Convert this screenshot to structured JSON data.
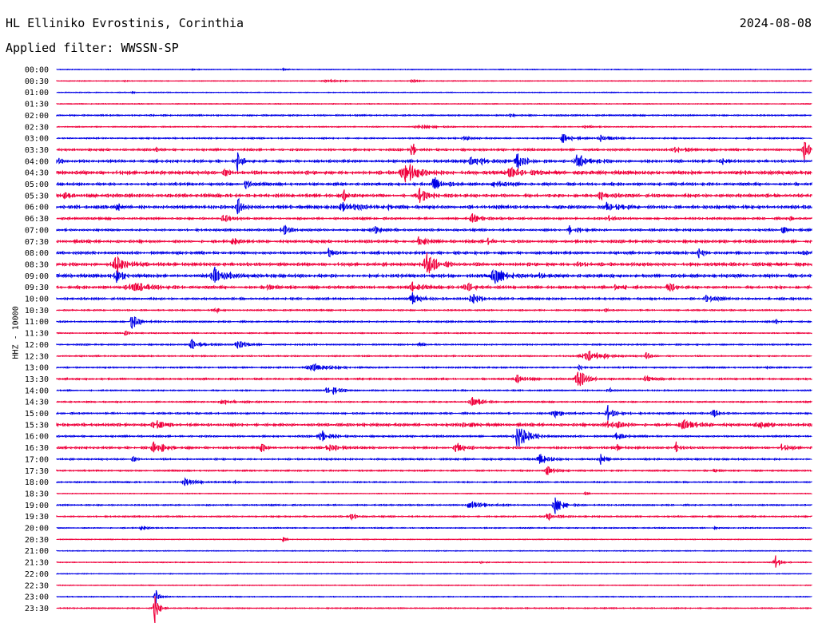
{
  "header": {
    "station": "HL Elliniko Evrostinis, Corinthia",
    "date": "2024-08-08",
    "filter": "Applied filter: WWSSN-SP"
  },
  "chart_data": {
    "type": "line",
    "title": "HL Elliniko Evrostinis, Corinthia",
    "date": "2024-08-08",
    "filter": "WWSSN-SP",
    "ylabel": "HHZ - 10000",
    "tick_labels": [
      "00:00",
      "00:30",
      "01:00",
      "01:30",
      "02:00",
      "02:30",
      "03:00",
      "03:30",
      "04:00",
      "04:30",
      "05:00",
      "05:30",
      "06:00",
      "06:30",
      "07:00",
      "07:30",
      "08:00",
      "08:30",
      "09:00",
      "09:30",
      "10:00",
      "10:30",
      "11:00",
      "11:30",
      "12:00",
      "12:30",
      "13:00",
      "13:30",
      "14:00",
      "14:30",
      "15:00",
      "15:30",
      "16:00",
      "16:30",
      "17:00",
      "17:30",
      "18:00",
      "18:30",
      "19:00",
      "19:30",
      "20:00",
      "20:30",
      "21:00",
      "21:30",
      "22:00",
      "22:30",
      "23:00",
      "23:30"
    ],
    "colors": [
      "#0000e6",
      "#f0003c"
    ],
    "traces": [
      {
        "noise": 0.4,
        "events": [
          [
            0.18,
            1.5,
            0.01
          ],
          [
            0.3,
            1.2,
            0.01
          ]
        ]
      },
      {
        "noise": 0.4,
        "events": [
          [
            0.36,
            2.0,
            0.04
          ],
          [
            0.47,
            1.5,
            0.02
          ],
          [
            0.09,
            1.0,
            0.01
          ]
        ]
      },
      {
        "noise": 0.4,
        "events": [
          [
            0.1,
            1.0,
            0.01
          ]
        ]
      },
      {
        "noise": 0.4,
        "events": []
      },
      {
        "noise": 0.8,
        "events": [
          [
            0.12,
            1.2,
            0.02
          ],
          [
            0.6,
            1.2,
            0.02
          ]
        ]
      },
      {
        "noise": 0.6,
        "events": [
          [
            0.48,
            2.5,
            0.04
          ],
          [
            0.7,
            1.5,
            0.02
          ]
        ]
      },
      {
        "noise": 0.8,
        "events": [
          [
            0.67,
            6,
            0.02
          ],
          [
            0.72,
            5,
            0.02
          ],
          [
            0.54,
            2,
            0.02
          ]
        ]
      },
      {
        "noise": 1.2,
        "events": [
          [
            0.13,
            2,
            0.01
          ],
          [
            0.82,
            6,
            0.02
          ],
          [
            0.99,
            14,
            0.02
          ],
          [
            0.47,
            20,
            0.005
          ]
        ]
      },
      {
        "noise": 1.5,
        "events": [
          [
            0.0,
            6,
            0.01
          ],
          [
            0.24,
            14,
            0.01
          ],
          [
            0.61,
            10,
            0.02
          ],
          [
            0.69,
            9,
            0.03
          ],
          [
            0.55,
            5,
            0.05
          ],
          [
            0.88,
            5,
            0.01
          ]
        ]
      },
      {
        "noise": 2.0,
        "events": [
          [
            0.46,
            16,
            0.03
          ],
          [
            0.22,
            4,
            0.02
          ],
          [
            0.6,
            5,
            0.04
          ]
        ]
      },
      {
        "noise": 1.5,
        "events": [
          [
            0.5,
            10,
            0.02
          ],
          [
            0.25,
            6,
            0.01
          ],
          [
            0.58,
            5,
            0.02
          ]
        ]
      },
      {
        "noise": 1.8,
        "events": [
          [
            0.01,
            5,
            0.01
          ],
          [
            0.38,
            8,
            0.01
          ],
          [
            0.48,
            10,
            0.02
          ],
          [
            0.72,
            4,
            0.02
          ]
        ]
      },
      {
        "noise": 1.8,
        "events": [
          [
            0.08,
            6,
            0.01
          ],
          [
            0.24,
            12,
            0.01
          ],
          [
            0.38,
            8,
            0.03
          ],
          [
            0.73,
            6,
            0.03
          ],
          [
            0.44,
            3,
            0.01
          ]
        ]
      },
      {
        "noise": 1.2,
        "events": [
          [
            0.22,
            5,
            0.02
          ],
          [
            0.55,
            6,
            0.02
          ],
          [
            0.73,
            4,
            0.02
          ],
          [
            0.97,
            4,
            0.01
          ]
        ]
      },
      {
        "noise": 1.2,
        "events": [
          [
            0.3,
            8,
            0.02
          ],
          [
            0.42,
            5,
            0.02
          ],
          [
            0.68,
            6,
            0.02
          ],
          [
            0.96,
            6,
            0.01
          ]
        ]
      },
      {
        "noise": 1.5,
        "events": [
          [
            0.23,
            12,
            0.01
          ],
          [
            0.48,
            6,
            0.02
          ],
          [
            0.57,
            7,
            0.01
          ]
        ]
      },
      {
        "noise": 1.5,
        "events": [
          [
            0.36,
            6,
            0.01
          ],
          [
            0.85,
            8,
            0.01
          ],
          [
            0.99,
            5,
            0.01
          ]
        ]
      },
      {
        "noise": 1.8,
        "events": [
          [
            0.08,
            10,
            0.03
          ],
          [
            0.49,
            14,
            0.03
          ],
          [
            0.69,
            4,
            0.02
          ]
        ]
      },
      {
        "noise": 1.8,
        "events": [
          [
            0.08,
            8,
            0.02
          ],
          [
            0.21,
            10,
            0.03
          ],
          [
            0.58,
            10,
            0.03
          ],
          [
            0.64,
            5,
            0.01
          ]
        ]
      },
      {
        "noise": 1.5,
        "events": [
          [
            0.1,
            6,
            0.04
          ],
          [
            0.28,
            7,
            0.01
          ],
          [
            0.47,
            8,
            0.02
          ],
          [
            0.54,
            8,
            0.02
          ],
          [
            0.74,
            7,
            0.02
          ],
          [
            0.81,
            5,
            0.02
          ]
        ]
      },
      {
        "noise": 1.2,
        "events": [
          [
            0.47,
            10,
            0.02
          ],
          [
            0.55,
            7,
            0.02
          ],
          [
            0.86,
            5,
            0.02
          ]
        ]
      },
      {
        "noise": 0.8,
        "events": [
          [
            0.21,
            4,
            0.01
          ],
          [
            0.72,
            4,
            0.01
          ]
        ]
      },
      {
        "noise": 0.9,
        "events": [
          [
            0.1,
            9,
            0.02
          ],
          [
            0.38,
            2,
            0.01
          ],
          [
            0.95,
            3,
            0.01
          ]
        ]
      },
      {
        "noise": 0.6,
        "events": [
          [
            0.09,
            3,
            0.01
          ]
        ]
      },
      {
        "noise": 0.8,
        "events": [
          [
            0.18,
            8,
            0.02
          ],
          [
            0.24,
            7,
            0.02
          ],
          [
            0.48,
            2,
            0.01
          ]
        ]
      },
      {
        "noise": 0.8,
        "events": [
          [
            0.7,
            8,
            0.04
          ],
          [
            0.78,
            6,
            0.01
          ]
        ]
      },
      {
        "noise": 0.8,
        "events": [
          [
            0.34,
            4,
            0.05
          ],
          [
            0.69,
            8,
            0.01
          ],
          [
            0.94,
            5,
            0.005
          ]
        ]
      },
      {
        "noise": 1.0,
        "events": [
          [
            0.61,
            5,
            0.02
          ],
          [
            0.69,
            14,
            0.02
          ],
          [
            0.78,
            3,
            0.02
          ]
        ]
      },
      {
        "noise": 0.8,
        "events": [
          [
            0.36,
            9,
            0.02
          ],
          [
            0.73,
            4,
            0.01
          ]
        ]
      },
      {
        "noise": 0.8,
        "events": [
          [
            0.22,
            3,
            0.03
          ],
          [
            0.55,
            8,
            0.02
          ]
        ]
      },
      {
        "noise": 1.0,
        "events": [
          [
            0.66,
            4,
            0.03
          ],
          [
            0.73,
            10,
            0.02
          ],
          [
            0.87,
            4,
            0.02
          ]
        ]
      },
      {
        "noise": 1.5,
        "events": [
          [
            0.13,
            6,
            0.02
          ],
          [
            0.54,
            4,
            0.02
          ],
          [
            0.73,
            8,
            0.03
          ],
          [
            0.83,
            5,
            0.04
          ],
          [
            0.93,
            4,
            0.03
          ]
        ]
      },
      {
        "noise": 1.0,
        "events": [
          [
            0.35,
            8,
            0.02
          ],
          [
            0.61,
            14,
            0.03
          ],
          [
            0.74,
            5,
            0.02
          ]
        ]
      },
      {
        "noise": 1.2,
        "events": [
          [
            0.13,
            8,
            0.03
          ],
          [
            0.27,
            8,
            0.01
          ],
          [
            0.36,
            6,
            0.02
          ],
          [
            0.53,
            7,
            0.02
          ],
          [
            0.74,
            6,
            0.01
          ],
          [
            0.82,
            7,
            0.01
          ],
          [
            0.96,
            4,
            0.02
          ]
        ]
      },
      {
        "noise": 1.0,
        "events": [
          [
            0.1,
            4,
            0.01
          ],
          [
            0.64,
            8,
            0.02
          ],
          [
            0.72,
            6,
            0.02
          ]
        ]
      },
      {
        "noise": 0.8,
        "events": [
          [
            0.65,
            6,
            0.02
          ],
          [
            0.87,
            3,
            0.01
          ]
        ]
      },
      {
        "noise": 0.8,
        "events": [
          [
            0.17,
            4,
            0.03
          ],
          [
            0.23,
            4,
            0.01
          ]
        ]
      },
      {
        "noise": 0.4,
        "events": [
          [
            0.7,
            2,
            0.01
          ]
        ]
      },
      {
        "noise": 0.8,
        "events": [
          [
            0.55,
            5,
            0.04
          ],
          [
            0.66,
            14,
            0.02
          ]
        ]
      },
      {
        "noise": 0.8,
        "events": [
          [
            0.39,
            6,
            0.01
          ],
          [
            0.65,
            4,
            0.02
          ]
        ]
      },
      {
        "noise": 0.6,
        "events": [
          [
            0.11,
            7,
            0.01
          ],
          [
            0.87,
            3,
            0.005
          ]
        ]
      },
      {
        "noise": 0.4,
        "events": [
          [
            0.3,
            5,
            0.005
          ]
        ]
      },
      {
        "noise": 0.4,
        "events": []
      },
      {
        "noise": 0.5,
        "events": [
          [
            0.95,
            14,
            0.01
          ],
          [
            0.56,
            2,
            0.01
          ]
        ]
      },
      {
        "noise": 0.4,
        "events": []
      },
      {
        "noise": 0.4,
        "events": []
      },
      {
        "noise": 0.5,
        "events": [
          [
            0.13,
            12,
            0.01
          ]
        ]
      },
      {
        "noise": 0.6,
        "events": [
          [
            0.13,
            20,
            0.01
          ]
        ]
      }
    ]
  }
}
